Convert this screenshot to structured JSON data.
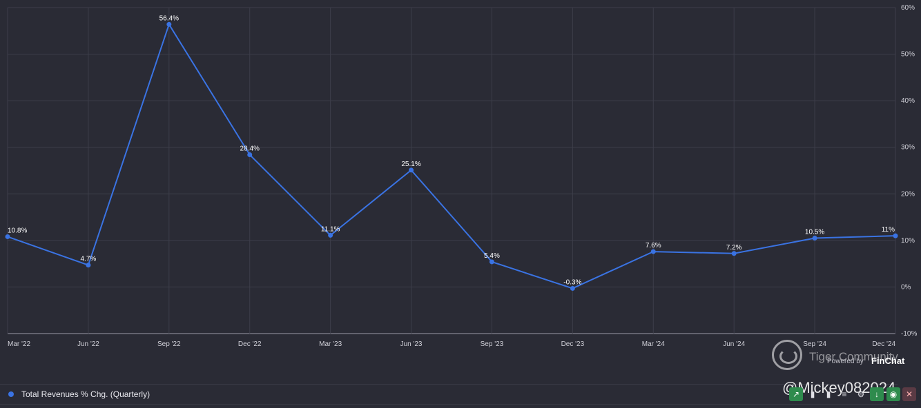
{
  "chart_data": {
    "type": "line",
    "title": "",
    "xlabel": "",
    "ylabel": "",
    "categories": [
      "Mar '22",
      "Jun '22",
      "Sep '22",
      "Dec '22",
      "Mar '23",
      "Jun '23",
      "Sep '23",
      "Dec '23",
      "Mar '24",
      "Jun '24",
      "Sep '24",
      "Dec '24"
    ],
    "series": [
      {
        "name": "Total Revenues % Chg. (Quarterly)",
        "color": "#3a73e3",
        "values": [
          10.8,
          4.7,
          56.4,
          28.4,
          11.1,
          25.1,
          5.4,
          -0.3,
          7.6,
          7.2,
          10.5,
          11
        ],
        "labels": [
          "10.8%",
          "4.7%",
          "56.4%",
          "28.4%",
          "11.1%",
          "25.1%",
          "5.4%",
          "-0.3%",
          "7.6%",
          "7.2%",
          "10.5%",
          "11%"
        ]
      }
    ],
    "ylim": [
      -10,
      60
    ],
    "y_ticks": [
      -10,
      0,
      10,
      20,
      30,
      40,
      50,
      60
    ],
    "y_tick_labels": [
      "-10%",
      "0%",
      "10%",
      "20%",
      "30%",
      "40%",
      "50%",
      "60%"
    ],
    "y_axis_side": "right",
    "grid": true,
    "legend": "bottom-left"
  },
  "watermark": {
    "brand": "Tiger Community",
    "powered_by": "Powered by",
    "provider": "FinChat",
    "user_handle": "@Mickey082024"
  },
  "toolbar": {
    "icons": [
      "trend-icon",
      "bar-chart-icon",
      "bar-chart-alt-icon",
      "menu-icon",
      "gear-icon",
      "download-icon",
      "eye-icon",
      "close-icon"
    ]
  }
}
